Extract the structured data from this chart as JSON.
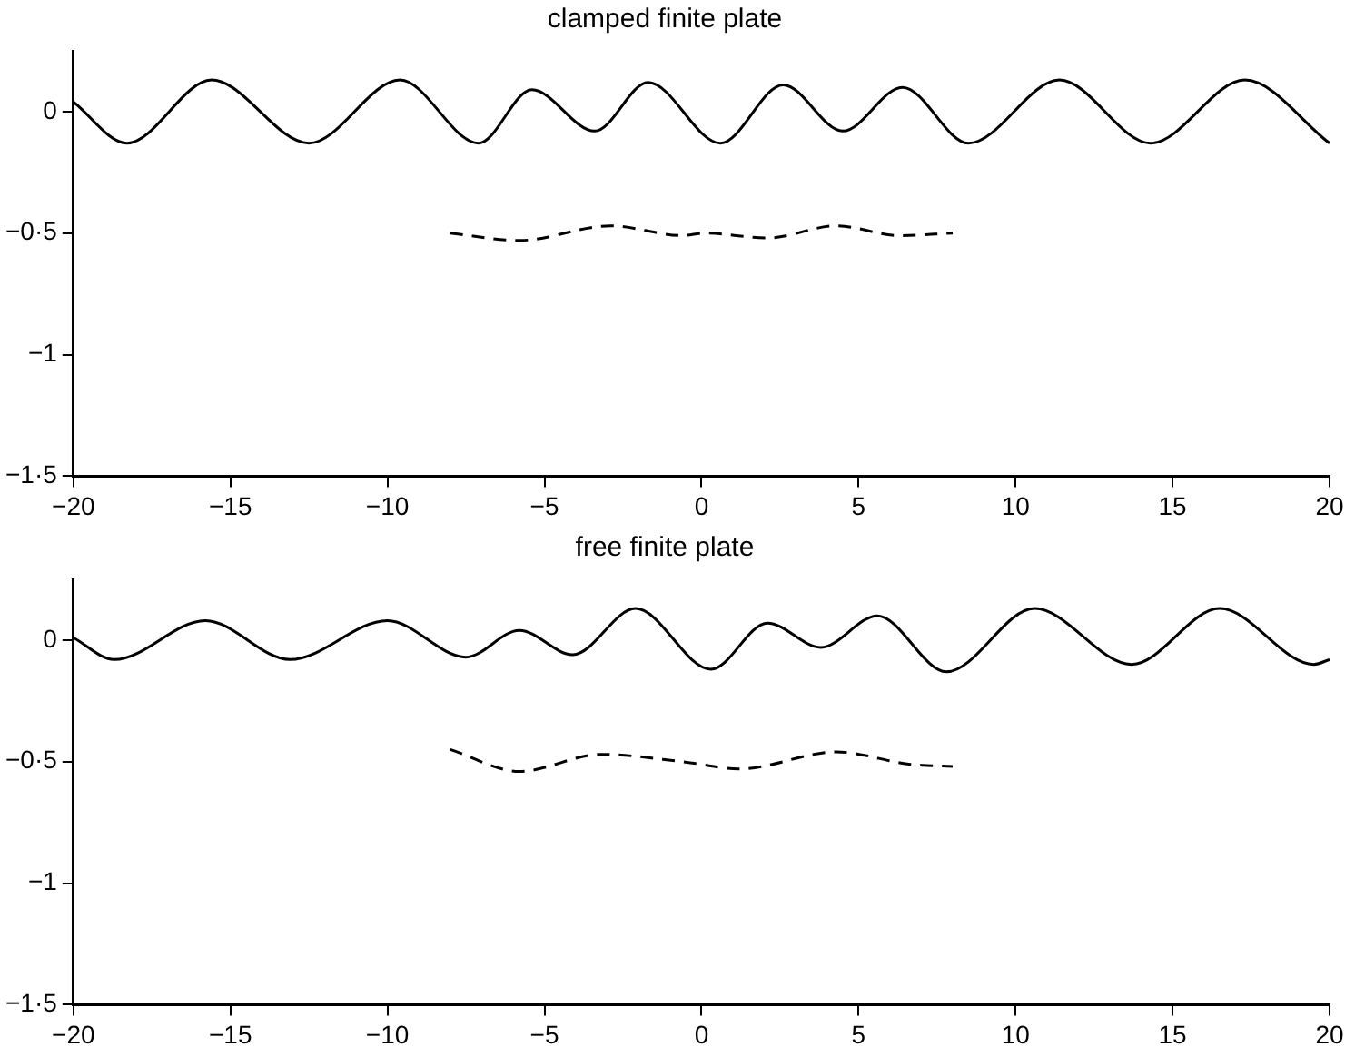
{
  "chart_data": [
    {
      "type": "line",
      "title": "clamped finite plate",
      "xlim": [
        -20,
        20
      ],
      "ylim": [
        -1.5,
        0.25
      ],
      "xticks": [
        {
          "value": -20,
          "label": "−20"
        },
        {
          "value": -15,
          "label": "−15"
        },
        {
          "value": -10,
          "label": "−10"
        },
        {
          "value": -5,
          "label": "−5"
        },
        0,
        5,
        10,
        15,
        20
      ],
      "yticks": [
        {
          "value": -1.5,
          "label": "−1·5"
        },
        {
          "value": -1,
          "label": "−1"
        },
        {
          "value": -0.5,
          "label": "−0·5"
        },
        0
      ],
      "grid": false,
      "legend": false,
      "marker": "none",
      "series": [
        {
          "color": "#000000",
          "line_style": "solid",
          "x": [
            -20,
            -18.3,
            -15.6,
            -12.5,
            -9.6,
            -7.1,
            -5.4,
            -3.4,
            -1.7,
            0.6,
            2.6,
            4.5,
            6.4,
            8.5,
            11.4,
            14.3,
            17.3,
            20
          ],
          "values": [
            0.04,
            -0.13,
            0.13,
            -0.13,
            0.13,
            -0.13,
            0.09,
            -0.08,
            0.12,
            -0.13,
            0.11,
            -0.08,
            0.1,
            -0.13,
            0.13,
            -0.13,
            0.13,
            -0.13
          ]
        },
        {
          "color": "#000000",
          "line_style": "dashed",
          "x": [
            -8,
            -5.8,
            -2.9,
            -0.6,
            0.1,
            2.1,
            4.3,
            6.3,
            8
          ],
          "values": [
            -0.5,
            -0.53,
            -0.47,
            -0.51,
            -0.5,
            -0.52,
            -0.47,
            -0.51,
            -0.5
          ]
        }
      ]
    },
    {
      "type": "line",
      "title": "free finite plate",
      "xlim": [
        -20,
        20
      ],
      "ylim": [
        -1.5,
        0.25
      ],
      "xticks": [
        {
          "value": -20,
          "label": "−20"
        },
        {
          "value": -15,
          "label": "−15"
        },
        {
          "value": -10,
          "label": "−10"
        },
        {
          "value": -5,
          "label": "−5"
        },
        0,
        5,
        10,
        15,
        20
      ],
      "yticks": [
        {
          "value": -1.5,
          "label": "−1·5"
        },
        {
          "value": -1,
          "label": "−1"
        },
        {
          "value": -0.5,
          "label": "−0·5"
        },
        0
      ],
      "grid": false,
      "legend": false,
      "marker": "none",
      "series": [
        {
          "color": "#000000",
          "line_style": "solid",
          "x": [
            -20,
            -18.7,
            -15.8,
            -13.1,
            -10,
            -7.5,
            -5.8,
            -4.1,
            -2.1,
            0.3,
            2.1,
            3.8,
            5.6,
            7.8,
            10.6,
            13.7,
            16.5,
            19.5,
            20
          ],
          "values": [
            0.01,
            -0.08,
            0.08,
            -0.08,
            0.08,
            -0.07,
            0.04,
            -0.06,
            0.13,
            -0.12,
            0.07,
            -0.03,
            0.1,
            -0.13,
            0.13,
            -0.1,
            0.13,
            -0.1,
            -0.08
          ]
        },
        {
          "color": "#000000",
          "line_style": "dashed",
          "x": [
            -8,
            -5.8,
            -3.2,
            -0.6,
            1.2,
            4.3,
            6.6,
            8
          ],
          "values": [
            -0.45,
            -0.54,
            -0.47,
            -0.5,
            -0.53,
            -0.46,
            -0.51,
            -0.52
          ]
        }
      ]
    }
  ]
}
